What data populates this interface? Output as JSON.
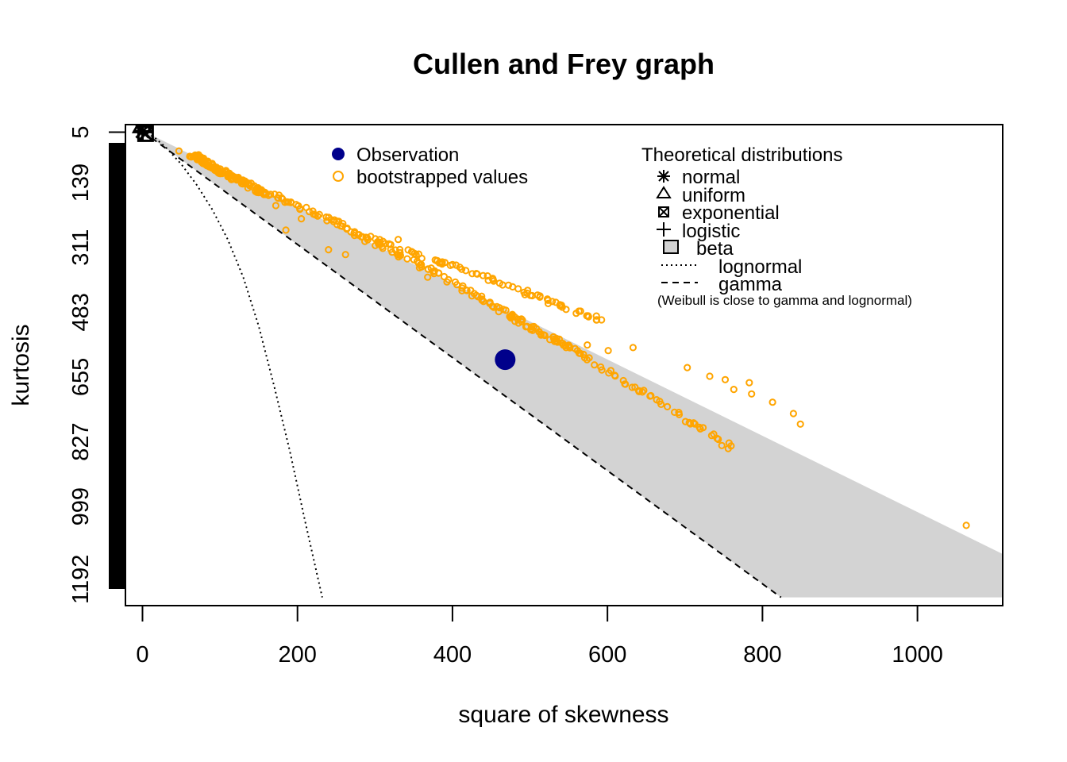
{
  "chart_data": {
    "type": "scatter",
    "title": "Cullen and Frey graph",
    "xlabel": "square of skewness",
    "ylabel": "kurtosis",
    "xlim": [
      -22,
      1110
    ],
    "ylim": [
      1262,
      -15
    ],
    "y_axis_inverted": true,
    "grid": false,
    "x_ticks": [
      0,
      200,
      400,
      600,
      800,
      1000
    ],
    "x_tick_labels": [
      "0",
      "200",
      "400",
      "600",
      "800",
      "1000"
    ],
    "y_ticks": [
      5,
      139,
      311,
      483,
      655,
      827,
      999,
      1192
    ],
    "y_tick_labels": [
      "5",
      "139",
      "311",
      "483",
      "655",
      "827",
      "999",
      "1192"
    ],
    "observation": {
      "name": "Observation",
      "x": 468,
      "y": 609,
      "color": "#00008b"
    },
    "bootstrap_series": {
      "name": "bootstrapped values",
      "color": "#ffa500",
      "main_trend": [
        [
          62,
          65
        ],
        [
          70,
          70
        ],
        [
          78,
          80
        ],
        [
          85,
          92
        ],
        [
          92,
          100
        ],
        [
          100,
          108
        ],
        [
          108,
          114
        ],
        [
          115,
          122
        ],
        [
          122,
          130
        ],
        [
          130,
          138
        ],
        [
          140,
          148
        ],
        [
          150,
          158
        ],
        [
          160,
          170
        ],
        [
          185,
          185
        ],
        [
          210,
          210
        ],
        [
          245,
          240
        ],
        [
          280,
          278
        ],
        [
          310,
          310
        ],
        [
          340,
          340
        ],
        [
          370,
          368
        ],
        [
          400,
          400
        ],
        [
          430,
          440
        ],
        [
          460,
          470
        ],
        [
          480,
          498
        ],
        [
          500,
          525
        ],
        [
          520,
          545
        ],
        [
          540,
          565
        ],
        [
          560,
          585
        ],
        [
          600,
          640
        ],
        [
          640,
          690
        ],
        [
          680,
          740
        ],
        [
          720,
          790
        ],
        [
          760,
          845
        ]
      ],
      "upper_trend": [
        [
          270,
          270
        ],
        [
          300,
          290
        ],
        [
          330,
          310
        ],
        [
          360,
          335
        ],
        [
          390,
          355
        ],
        [
          420,
          375
        ],
        [
          450,
          395
        ],
        [
          480,
          420
        ],
        [
          510,
          445
        ],
        [
          540,
          465
        ],
        [
          570,
          490
        ],
        [
          600,
          505
        ]
      ],
      "outliers": [
        [
          47,
          55
        ],
        [
          172,
          200
        ],
        [
          185,
          265
        ],
        [
          205,
          235
        ],
        [
          238,
          240
        ],
        [
          258,
          255
        ],
        [
          240,
          317
        ],
        [
          262,
          330
        ],
        [
          287,
          295
        ],
        [
          330,
          290
        ],
        [
          368,
          390
        ],
        [
          383,
          352
        ],
        [
          497,
          425
        ],
        [
          513,
          440
        ],
        [
          574,
          570
        ],
        [
          601,
          585
        ],
        [
          633,
          577
        ],
        [
          703,
          630
        ],
        [
          732,
          653
        ],
        [
          752,
          662
        ],
        [
          763,
          688
        ],
        [
          783,
          670
        ],
        [
          786,
          700
        ],
        [
          813,
          722
        ],
        [
          840,
          752
        ],
        [
          849,
          780
        ],
        [
          1063,
          1049
        ]
      ]
    },
    "theoretical_points": [
      {
        "name": "normal",
        "x": 0,
        "y": 3,
        "marker": "asterisk"
      },
      {
        "name": "uniform",
        "x": 0,
        "y": -12,
        "marker": "triangle"
      },
      {
        "name": "exponential",
        "x": 4,
        "y": 9,
        "marker": "boxed-x"
      },
      {
        "name": "logistic",
        "x": 0,
        "y": 4.2,
        "marker": "plus"
      }
    ],
    "beta_region": {
      "name": "beta",
      "color": "#d3d3d3",
      "polygon": [
        [
          0,
          1
        ],
        [
          1110,
          1125
        ],
        [
          1110,
          1240
        ],
        [
          824,
          1240
        ],
        [
          0,
          3
        ]
      ]
    },
    "lognormal_curve": {
      "name": "lognormal",
      "style": "dotted",
      "points": [
        [
          0,
          3
        ],
        [
          15,
          18
        ],
        [
          30,
          45
        ],
        [
          50,
          90
        ],
        [
          70,
          145
        ],
        [
          90,
          210
        ],
        [
          110,
          290
        ],
        [
          130,
          390
        ],
        [
          150,
          520
        ],
        [
          170,
          680
        ],
        [
          190,
          850
        ],
        [
          210,
          1040
        ],
        [
          232,
          1240
        ]
      ]
    },
    "gamma_curve": {
      "name": "gamma",
      "style": "dashed",
      "points": [
        [
          0,
          3
        ],
        [
          824,
          1240
        ]
      ]
    },
    "legend": {
      "placement": "top",
      "observed_entries": [
        "Observation",
        "bootstrapped values"
      ],
      "theoretical_title": "Theoretical distributions",
      "theoretical_entries": [
        "normal",
        "uniform",
        "exponential",
        "logistic",
        "beta",
        "lognormal",
        "gamma"
      ],
      "note": "(Weibull is close to gamma and lognormal)"
    }
  }
}
